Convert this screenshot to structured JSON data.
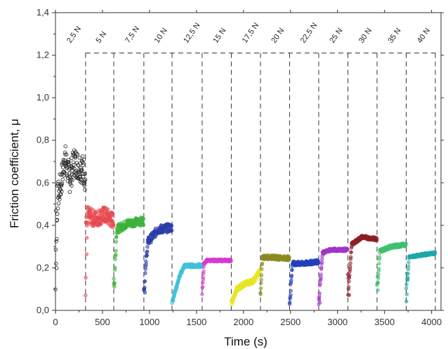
{
  "chart_data": {
    "type": "scatter",
    "xlabel": "Time (s)",
    "ylabel": "Friction coefficient, μ",
    "xlim": [
      0,
      4100
    ],
    "ylim": [
      0,
      1.4
    ],
    "x_ticks": [
      0,
      500,
      1000,
      1500,
      2000,
      2500,
      3000,
      3500,
      4000
    ],
    "y_ticks": [
      0.0,
      0.2,
      0.4,
      0.6,
      0.8,
      1.0,
      1.2,
      1.4
    ],
    "y_tick_labels": [
      "0,0",
      "0,2",
      "0,4",
      "0,6",
      "0,8",
      "1,0",
      "1,2",
      "1,4"
    ],
    "grid": false,
    "stage_boundaries": [
      320,
      620,
      940,
      1240,
      1560,
      1870,
      2180,
      2490,
      2800,
      3110,
      3420,
      3730,
      4040
    ],
    "boundary_line_top": 1.21,
    "segments": [
      {
        "name": "2,5 N",
        "label_x": 160,
        "color": "#222222",
        "start": 0,
        "end": 320,
        "levels": [
          [
            0,
            0.1
          ],
          [
            20,
            0.52
          ],
          [
            60,
            0.6
          ],
          [
            100,
            0.72
          ],
          [
            150,
            0.62
          ],
          [
            200,
            0.7
          ],
          [
            250,
            0.68
          ],
          [
            300,
            0.66
          ],
          [
            320,
            0.62
          ]
        ],
        "noise": 0.07
      },
      {
        "name": "5 N",
        "label_x": 470,
        "color": "#e8474e",
        "start": 320,
        "end": 620,
        "levels": [
          [
            0,
            0.08
          ],
          [
            20,
            0.45
          ],
          [
            100,
            0.43
          ],
          [
            200,
            0.45
          ],
          [
            300,
            0.42
          ]
        ],
        "noise": 0.04
      },
      {
        "name": "7,5 N",
        "label_x": 780,
        "color": "#3cb33c",
        "start": 620,
        "end": 940,
        "levels": [
          [
            0,
            0.08
          ],
          [
            30,
            0.38
          ],
          [
            150,
            0.41
          ],
          [
            320,
            0.42
          ]
        ],
        "noise": 0.02
      },
      {
        "name": "10 N",
        "label_x": 1090,
        "color": "#2a3da8",
        "start": 940,
        "end": 1240,
        "levels": [
          [
            0,
            0.08
          ],
          [
            40,
            0.32
          ],
          [
            150,
            0.38
          ],
          [
            300,
            0.39
          ]
        ],
        "noise": 0.02
      },
      {
        "name": "12,5 N",
        "label_x": 1400,
        "color": "#3fc0d8",
        "start": 1240,
        "end": 1560,
        "levels": [
          [
            0,
            0.04
          ],
          [
            80,
            0.16
          ],
          [
            130,
            0.21
          ],
          [
            320,
            0.21
          ]
        ],
        "noise": 0.008
      },
      {
        "name": "15 N",
        "label_x": 1715,
        "color": "#d63ad0",
        "start": 1560,
        "end": 1870,
        "levels": [
          [
            0,
            0.08
          ],
          [
            20,
            0.22
          ],
          [
            50,
            0.235
          ],
          [
            310,
            0.235
          ]
        ],
        "noise": 0.005
      },
      {
        "name": "17,5 N",
        "label_x": 2025,
        "color": "#e6e620",
        "start": 1870,
        "end": 2180,
        "levels": [
          [
            0,
            0.03
          ],
          [
            60,
            0.1
          ],
          [
            120,
            0.12
          ],
          [
            240,
            0.14
          ],
          [
            310,
            0.19
          ]
        ],
        "noise": 0.012
      },
      {
        "name": "20 N",
        "label_x": 2335,
        "color": "#8a8a1f",
        "start": 2180,
        "end": 2490,
        "levels": [
          [
            0,
            0.06
          ],
          [
            20,
            0.25
          ],
          [
            100,
            0.25
          ],
          [
            310,
            0.245
          ]
        ],
        "noise": 0.01
      },
      {
        "name": "22,5 N",
        "label_x": 2645,
        "color": "#2240b8",
        "start": 2490,
        "end": 2800,
        "levels": [
          [
            0,
            0.03
          ],
          [
            30,
            0.22
          ],
          [
            150,
            0.22
          ],
          [
            310,
            0.23
          ]
        ],
        "noise": 0.01
      },
      {
        "name": "25 N",
        "label_x": 2955,
        "color": "#a034c8",
        "start": 2800,
        "end": 3110,
        "levels": [
          [
            0,
            0.03
          ],
          [
            40,
            0.27
          ],
          [
            120,
            0.285
          ],
          [
            310,
            0.285
          ]
        ],
        "noise": 0.007
      },
      {
        "name": "30 N",
        "label_x": 3265,
        "color": "#8c1e28",
        "start": 3110,
        "end": 3420,
        "levels": [
          [
            0,
            0.06
          ],
          [
            40,
            0.31
          ],
          [
            150,
            0.345
          ],
          [
            310,
            0.335
          ]
        ],
        "noise": 0.008
      },
      {
        "name": "35 N",
        "label_x": 3575,
        "color": "#3ec06c",
        "start": 3420,
        "end": 3730,
        "levels": [
          [
            0,
            0.05
          ],
          [
            30,
            0.28
          ],
          [
            150,
            0.3
          ],
          [
            310,
            0.31
          ]
        ],
        "noise": 0.008
      },
      {
        "name": "40 N",
        "label_x": 3885,
        "color": "#1fa8a8",
        "start": 3730,
        "end": 4040,
        "levels": [
          [
            0,
            0.03
          ],
          [
            30,
            0.25
          ],
          [
            150,
            0.26
          ],
          [
            310,
            0.27
          ]
        ],
        "noise": 0.006
      }
    ]
  }
}
